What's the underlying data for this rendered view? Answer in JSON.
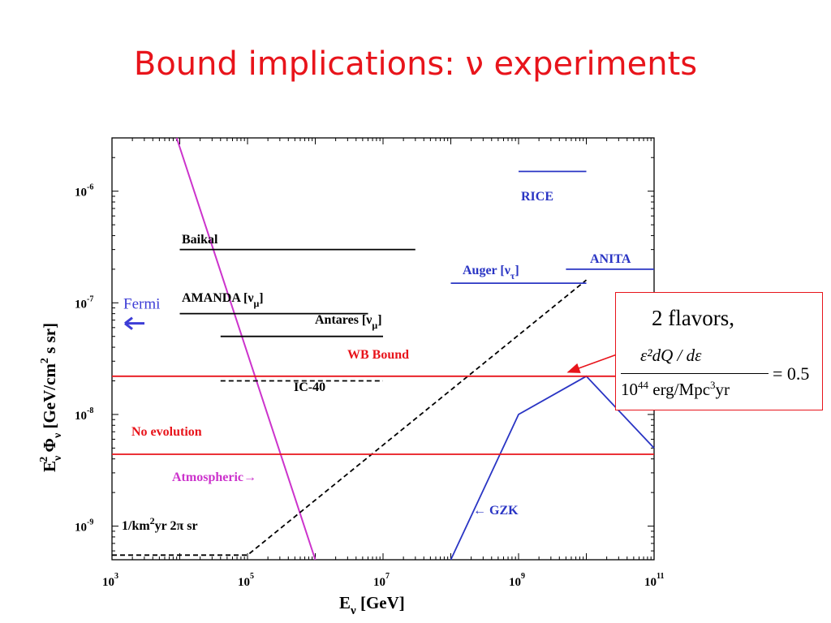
{
  "slide": {
    "title": "Bound implications: ν experiments"
  },
  "chart_data": {
    "type": "line",
    "xscale": "log",
    "yscale": "log",
    "xlim": [
      1000,
      100000000000
    ],
    "ylim": [
      5e-10,
      3e-06
    ],
    "xlabel": "Eν [GeV]",
    "ylabel": "Eν² Φν [GeV/cm² s sr]",
    "x_ticks": [
      {
        "value": 1000,
        "base": "10",
        "exp": "3"
      },
      {
        "value": 100000,
        "base": "10",
        "exp": "5"
      },
      {
        "value": 10000000,
        "base": "10",
        "exp": "7"
      },
      {
        "value": 1000000000,
        "base": "10",
        "exp": "9"
      },
      {
        "value": 100000000000,
        "base": "10",
        "exp": "11"
      }
    ],
    "y_ticks": [
      {
        "value": 1e-09,
        "base": "10",
        "exp": "-9"
      },
      {
        "value": 1e-08,
        "base": "10",
        "exp": "-8"
      },
      {
        "value": 1e-07,
        "base": "10",
        "exp": "-7"
      },
      {
        "value": 1e-06,
        "base": "10",
        "exp": "-6"
      }
    ],
    "series": [
      {
        "name": "Atmospheric→",
        "color": "#cc33cc",
        "style": "solid",
        "x": [
          9000,
          1000000
        ],
        "y": [
          3e-06,
          5e-10
        ]
      },
      {
        "name": "1/km²yr 2π sr",
        "color": "#000000",
        "style": "dashed",
        "x": [
          1000,
          100000,
          10000000000
        ],
        "y": [
          5.5e-10,
          5.5e-10,
          1.6e-07
        ]
      },
      {
        "name": "Baikal",
        "color": "#000000",
        "style": "solid",
        "x": [
          10000,
          30000000
        ],
        "y": [
          3e-07,
          3e-07
        ]
      },
      {
        "name": "AMANDA [νμ]",
        "color": "#000000",
        "style": "solid",
        "x": [
          10000,
          6000000
        ],
        "y": [
          8e-08,
          8e-08
        ]
      },
      {
        "name": "Antares [νμ]",
        "color": "#000000",
        "style": "solid",
        "x": [
          40000,
          10000000
        ],
        "y": [
          5e-08,
          5e-08
        ]
      },
      {
        "name": "IC-40",
        "color": "#000000",
        "style": "dashed",
        "x": [
          40000,
          10000000
        ],
        "y": [
          2e-08,
          2e-08
        ]
      },
      {
        "name": "RICE",
        "color": "#2a35c4",
        "style": "solid",
        "x": [
          1000000000,
          10000000000
        ],
        "y": [
          1.5e-06,
          1.5e-06
        ]
      },
      {
        "name": "Auger [ντ]",
        "color": "#2a35c4",
        "style": "solid",
        "x": [
          100000000,
          10000000000
        ],
        "y": [
          1.5e-07,
          1.5e-07
        ]
      },
      {
        "name": "ANITA",
        "color": "#2a35c4",
        "style": "solid",
        "x": [
          5000000000,
          100000000000
        ],
        "y": [
          2e-07,
          2e-07
        ]
      },
      {
        "name": "← GZK",
        "color": "#2a35c4",
        "style": "solid",
        "x": [
          100000000,
          1000000000,
          10000000000,
          100000000000
        ],
        "y": [
          5e-10,
          1e-08,
          2.2e-08,
          5e-09
        ]
      },
      {
        "name": "WB Bound",
        "color": "#e8141b",
        "style": "solid",
        "x": [
          1000,
          100000000000
        ],
        "y": [
          2.2e-08,
          2.2e-08
        ]
      },
      {
        "name": "No evolution",
        "color": "#e8141b",
        "style": "solid",
        "x": [
          1000,
          100000000000
        ],
        "y": [
          4.4e-09,
          4.4e-09
        ]
      }
    ],
    "annotations": [
      {
        "text": "Fermi",
        "color": "#3d3dd6",
        "arrow": "left",
        "x": 1000,
        "y": 8e-08
      }
    ],
    "callout": {
      "heading": "2 flavors,",
      "numerator": "ε²dQ / dε",
      "denominator_pre": "10",
      "denominator_exp": "44",
      "denominator_mid": " erg/Mpc",
      "denominator_exp2": "3",
      "denominator_post": "yr",
      "equals": "= 0.5",
      "border_color": "#e8141b"
    }
  }
}
